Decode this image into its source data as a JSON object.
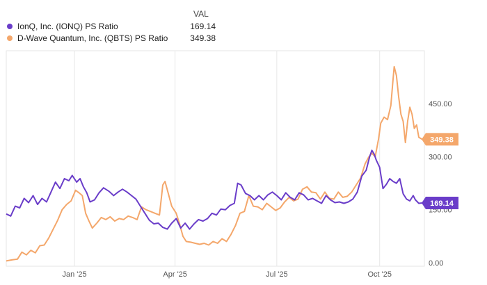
{
  "legend": {
    "header": "VAL",
    "rows": [
      {
        "name": "IonQ, Inc. (IONQ) PS Ratio",
        "value": "169.14",
        "color": "#6a3dc9"
      },
      {
        "name": "D-Wave Quantum, Inc. (QBTS) PS Ratio",
        "value": "349.38",
        "color": "#f4a76b"
      }
    ]
  },
  "chart_data": {
    "type": "line",
    "y_ticks": [
      {
        "value": 0,
        "label": "0.00"
      },
      {
        "value": 150,
        "label": "150.00"
      },
      {
        "value": 300,
        "label": "300.00"
      },
      {
        "value": 450,
        "label": "450.00"
      }
    ],
    "ylim": [
      -10,
      600
    ],
    "xlim": [
      "2024-11-01",
      "2025-11-10"
    ],
    "x_ticks": [
      {
        "date": "2025-01-01",
        "label": "Jan '25"
      },
      {
        "date": "2025-04-01",
        "label": "Apr '25"
      },
      {
        "date": "2025-07-01",
        "label": "Jul '25"
      },
      {
        "date": "2025-10-01",
        "label": "Oct '25"
      }
    ],
    "grid": "vertical",
    "series": [
      {
        "name": "IonQ, Inc. (IONQ) PS Ratio",
        "color": "#6a3dc9",
        "last_label": "169.14",
        "points": [
          [
            "2024-11-01",
            138
          ],
          [
            "2024-11-05",
            132
          ],
          [
            "2024-11-09",
            160
          ],
          [
            "2024-11-13",
            155
          ],
          [
            "2024-11-17",
            182
          ],
          [
            "2024-11-21",
            170
          ],
          [
            "2024-11-25",
            190
          ],
          [
            "2024-11-29",
            165
          ],
          [
            "2024-12-03",
            182
          ],
          [
            "2024-12-07",
            172
          ],
          [
            "2024-12-11",
            200
          ],
          [
            "2024-12-15",
            228
          ],
          [
            "2024-12-19",
            210
          ],
          [
            "2024-12-23",
            238
          ],
          [
            "2024-12-27",
            232
          ],
          [
            "2024-12-30",
            247
          ],
          [
            "2025-01-03",
            228
          ],
          [
            "2025-01-06",
            238
          ],
          [
            "2025-01-09",
            215
          ],
          [
            "2025-01-12",
            198
          ],
          [
            "2025-01-15",
            172
          ],
          [
            "2025-01-19",
            178
          ],
          [
            "2025-01-23",
            198
          ],
          [
            "2025-01-27",
            212
          ],
          [
            "2025-02-01",
            202
          ],
          [
            "2025-02-05",
            190
          ],
          [
            "2025-02-09",
            200
          ],
          [
            "2025-02-13",
            208
          ],
          [
            "2025-02-17",
            200
          ],
          [
            "2025-02-21",
            190
          ],
          [
            "2025-02-25",
            180
          ],
          [
            "2025-03-01",
            160
          ],
          [
            "2025-03-05",
            140
          ],
          [
            "2025-03-09",
            120
          ],
          [
            "2025-03-13",
            110
          ],
          [
            "2025-03-17",
            112
          ],
          [
            "2025-03-21",
            100
          ],
          [
            "2025-03-25",
            95
          ],
          [
            "2025-03-29",
            112
          ],
          [
            "2025-04-02",
            125
          ],
          [
            "2025-04-06",
            98
          ],
          [
            "2025-04-10",
            112
          ],
          [
            "2025-04-14",
            95
          ],
          [
            "2025-04-18",
            110
          ],
          [
            "2025-04-22",
            122
          ],
          [
            "2025-04-26",
            118
          ],
          [
            "2025-04-30",
            125
          ],
          [
            "2025-05-04",
            140
          ],
          [
            "2025-05-08",
            135
          ],
          [
            "2025-05-12",
            152
          ],
          [
            "2025-05-16",
            150
          ],
          [
            "2025-05-20",
            162
          ],
          [
            "2025-05-24",
            168
          ],
          [
            "2025-05-27",
            225
          ],
          [
            "2025-05-30",
            220
          ],
          [
            "2025-06-03",
            196
          ],
          [
            "2025-06-07",
            190
          ],
          [
            "2025-06-11",
            178
          ],
          [
            "2025-06-15",
            190
          ],
          [
            "2025-06-19",
            178
          ],
          [
            "2025-06-23",
            192
          ],
          [
            "2025-06-27",
            200
          ],
          [
            "2025-07-01",
            190
          ],
          [
            "2025-07-05",
            178
          ],
          [
            "2025-07-09",
            198
          ],
          [
            "2025-07-13",
            185
          ],
          [
            "2025-07-17",
            178
          ],
          [
            "2025-07-21",
            198
          ],
          [
            "2025-07-25",
            192
          ],
          [
            "2025-07-29",
            178
          ],
          [
            "2025-08-02",
            182
          ],
          [
            "2025-08-06",
            175
          ],
          [
            "2025-08-10",
            168
          ],
          [
            "2025-08-14",
            190
          ],
          [
            "2025-08-18",
            178
          ],
          [
            "2025-08-22",
            170
          ],
          [
            "2025-08-26",
            172
          ],
          [
            "2025-08-30",
            168
          ],
          [
            "2025-09-03",
            172
          ],
          [
            "2025-09-07",
            180
          ],
          [
            "2025-09-11",
            200
          ],
          [
            "2025-09-15",
            245
          ],
          [
            "2025-09-19",
            262
          ],
          [
            "2025-09-22",
            300
          ],
          [
            "2025-09-24",
            318
          ],
          [
            "2025-09-26",
            308
          ],
          [
            "2025-09-28",
            290
          ],
          [
            "2025-10-01",
            270
          ],
          [
            "2025-10-04",
            210
          ],
          [
            "2025-10-07",
            222
          ],
          [
            "2025-10-10",
            238
          ],
          [
            "2025-10-13",
            230
          ],
          [
            "2025-10-16",
            225
          ],
          [
            "2025-10-19",
            238
          ],
          [
            "2025-10-22",
            195
          ],
          [
            "2025-10-25",
            180
          ],
          [
            "2025-10-28",
            175
          ],
          [
            "2025-10-31",
            190
          ],
          [
            "2025-11-02",
            178
          ],
          [
            "2025-11-05",
            168
          ],
          [
            "2025-11-08",
            169.14
          ]
        ]
      },
      {
        "name": "D-Wave Quantum, Inc. (QBTS) PS Ratio",
        "color": "#f4a76b",
        "last_label": "349.38",
        "points": [
          [
            "2024-11-01",
            5
          ],
          [
            "2024-11-06",
            8
          ],
          [
            "2024-11-11",
            10
          ],
          [
            "2024-11-15",
            30
          ],
          [
            "2024-11-19",
            22
          ],
          [
            "2024-11-23",
            35
          ],
          [
            "2024-11-27",
            28
          ],
          [
            "2024-12-01",
            48
          ],
          [
            "2024-12-05",
            50
          ],
          [
            "2024-12-09",
            70
          ],
          [
            "2024-12-13",
            95
          ],
          [
            "2024-12-17",
            120
          ],
          [
            "2024-12-21",
            150
          ],
          [
            "2024-12-25",
            165
          ],
          [
            "2024-12-29",
            175
          ],
          [
            "2025-01-02",
            205
          ],
          [
            "2025-01-05",
            198
          ],
          [
            "2025-01-08",
            190
          ],
          [
            "2025-01-11",
            140
          ],
          [
            "2025-01-14",
            118
          ],
          [
            "2025-01-17",
            98
          ],
          [
            "2025-01-21",
            112
          ],
          [
            "2025-01-25",
            128
          ],
          [
            "2025-01-29",
            122
          ],
          [
            "2025-02-02",
            130
          ],
          [
            "2025-02-06",
            118
          ],
          [
            "2025-02-10",
            125
          ],
          [
            "2025-02-14",
            122
          ],
          [
            "2025-02-18",
            132
          ],
          [
            "2025-02-22",
            128
          ],
          [
            "2025-02-26",
            122
          ],
          [
            "2025-03-02",
            158
          ],
          [
            "2025-03-06",
            150
          ],
          [
            "2025-03-10",
            145
          ],
          [
            "2025-03-14",
            140
          ],
          [
            "2025-03-18",
            135
          ],
          [
            "2025-03-21",
            220
          ],
          [
            "2025-03-23",
            230
          ],
          [
            "2025-03-26",
            195
          ],
          [
            "2025-03-29",
            160
          ],
          [
            "2025-04-02",
            140
          ],
          [
            "2025-04-05",
            110
          ],
          [
            "2025-04-08",
            75
          ],
          [
            "2025-04-11",
            60
          ],
          [
            "2025-04-15",
            58
          ],
          [
            "2025-04-19",
            55
          ],
          [
            "2025-04-23",
            52
          ],
          [
            "2025-04-27",
            55
          ],
          [
            "2025-05-01",
            50
          ],
          [
            "2025-05-05",
            60
          ],
          [
            "2025-05-09",
            55
          ],
          [
            "2025-05-13",
            68
          ],
          [
            "2025-05-17",
            60
          ],
          [
            "2025-05-21",
            80
          ],
          [
            "2025-05-25",
            105
          ],
          [
            "2025-05-29",
            140
          ],
          [
            "2025-06-02",
            145
          ],
          [
            "2025-06-06",
            190
          ],
          [
            "2025-06-10",
            160
          ],
          [
            "2025-06-14",
            158
          ],
          [
            "2025-06-18",
            150
          ],
          [
            "2025-06-22",
            168
          ],
          [
            "2025-06-26",
            158
          ],
          [
            "2025-06-30",
            148
          ],
          [
            "2025-07-04",
            155
          ],
          [
            "2025-07-08",
            172
          ],
          [
            "2025-07-12",
            185
          ],
          [
            "2025-07-16",
            175
          ],
          [
            "2025-07-20",
            180
          ],
          [
            "2025-07-24",
            208
          ],
          [
            "2025-07-28",
            215
          ],
          [
            "2025-08-01",
            200
          ],
          [
            "2025-08-05",
            198
          ],
          [
            "2025-08-09",
            180
          ],
          [
            "2025-08-13",
            200
          ],
          [
            "2025-08-17",
            182
          ],
          [
            "2025-08-21",
            180
          ],
          [
            "2025-08-25",
            200
          ],
          [
            "2025-08-29",
            185
          ],
          [
            "2025-09-02",
            188
          ],
          [
            "2025-09-06",
            200
          ],
          [
            "2025-09-10",
            220
          ],
          [
            "2025-09-14",
            240
          ],
          [
            "2025-09-18",
            280
          ],
          [
            "2025-09-21",
            298
          ],
          [
            "2025-09-24",
            310
          ],
          [
            "2025-09-27",
            300
          ],
          [
            "2025-09-30",
            350
          ],
          [
            "2025-10-02",
            395
          ],
          [
            "2025-10-05",
            412
          ],
          [
            "2025-10-08",
            405
          ],
          [
            "2025-10-11",
            445
          ],
          [
            "2025-10-13",
            520
          ],
          [
            "2025-10-14",
            555
          ],
          [
            "2025-10-16",
            530
          ],
          [
            "2025-10-18",
            470
          ],
          [
            "2025-10-20",
            420
          ],
          [
            "2025-10-22",
            400
          ],
          [
            "2025-10-24",
            340
          ],
          [
            "2025-10-26",
            400
          ],
          [
            "2025-10-28",
            440
          ],
          [
            "2025-10-30",
            420
          ],
          [
            "2025-11-01",
            380
          ],
          [
            "2025-11-03",
            390
          ],
          [
            "2025-11-05",
            355
          ],
          [
            "2025-11-08",
            349.38
          ]
        ]
      }
    ]
  }
}
